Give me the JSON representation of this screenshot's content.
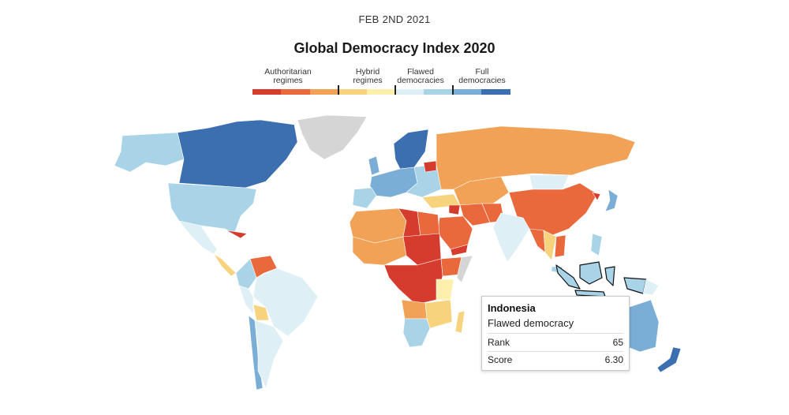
{
  "header": {
    "date": "FEB 2ND 2021",
    "title": "Global Democracy Index 2020"
  },
  "legend": {
    "categories": [
      {
        "label": "Authoritarian regimes",
        "colors": [
          "#d63c2e",
          "#e9693c",
          "#f2a257"
        ]
      },
      {
        "label": "Hybrid regimes",
        "colors": [
          "#f7d37e",
          "#fcf0ac"
        ]
      },
      {
        "label": "Flawed democracies",
        "colors": [
          "#dfeff6",
          "#a9d3e7"
        ]
      },
      {
        "label": "Full democracies",
        "colors": [
          "#7aaed6",
          "#3b6fb0"
        ]
      }
    ]
  },
  "colors": {
    "no_data": "#d5d5d5",
    "background": "#ffffff",
    "highlight_outline": "#111111"
  },
  "tooltip": {
    "country": "Indonesia",
    "category": "Flawed democracy",
    "rank_label": "Rank",
    "rank": "65",
    "score_label": "Score",
    "score": "6.30"
  }
}
